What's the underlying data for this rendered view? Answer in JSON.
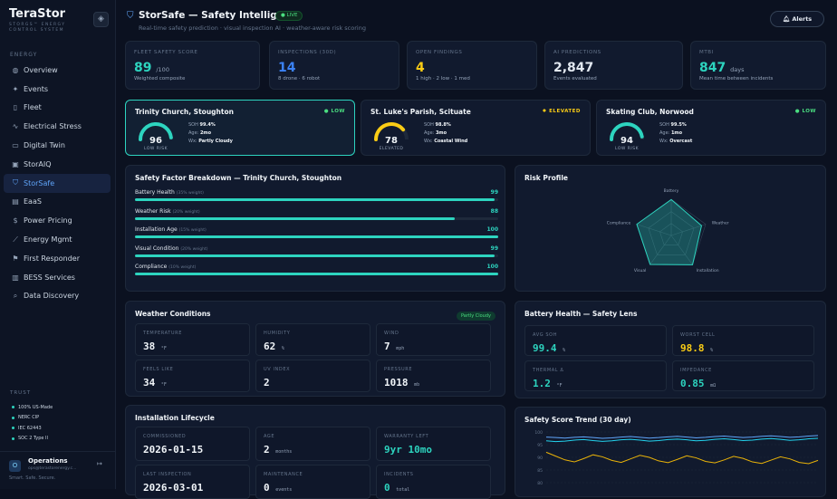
{
  "brand": {
    "name": "TeraStor",
    "subtitle": "STORGS™ ENERGY CONTROL SYSTEM",
    "collapse_icon": "diamond-icon"
  },
  "nav": {
    "section": "ENERGY",
    "items": [
      {
        "label": "Overview",
        "icon": "globe-icon",
        "glyph": "◍"
      },
      {
        "label": "Events",
        "icon": "sparkle-icon",
        "glyph": "✦"
      },
      {
        "label": "Fleet",
        "icon": "file-icon",
        "glyph": "▯"
      },
      {
        "label": "Electrical Stress",
        "icon": "wave-icon",
        "glyph": "∿"
      },
      {
        "label": "Digital Twin",
        "icon": "monitor-icon",
        "glyph": "▭"
      },
      {
        "label": "StorAIQ",
        "icon": "chip-icon",
        "glyph": "▣"
      },
      {
        "label": "StorSafe",
        "icon": "shield-icon",
        "glyph": "⛉",
        "active": true
      },
      {
        "label": "EaaS",
        "icon": "document-icon",
        "glyph": "▤"
      },
      {
        "label": "Power Pricing",
        "icon": "dollar-icon",
        "glyph": "$"
      },
      {
        "label": "Energy Mgmt",
        "icon": "trend-icon",
        "glyph": "⟋"
      },
      {
        "label": "First Responder",
        "icon": "flag-icon",
        "glyph": "⚑"
      },
      {
        "label": "BESS Services",
        "icon": "battery-icon",
        "glyph": "▥"
      },
      {
        "label": "Data Discovery",
        "icon": "search-icon",
        "glyph": "⌕"
      }
    ]
  },
  "trust": {
    "heading": "TRUST",
    "items": [
      "100% US-Made",
      "NERC CIP",
      "IEC 62443",
      "SOC 2 Type II"
    ]
  },
  "user": {
    "initial": "O",
    "name": "Operations",
    "email": "ops@terastorenergy.c...",
    "tagline": "Smart. Safe. Secure."
  },
  "header": {
    "title": "StorSafe — Safety Intelligence",
    "live": "● LIVE",
    "subtitle": "Real-time safety prediction · visual inspection AI · weather-aware risk scoring",
    "alerts": "Alerts"
  },
  "kpis": [
    {
      "label": "FLEET SAFETY SCORE",
      "value": "89",
      "unit": "/100",
      "sub": "Weighted composite",
      "color": "#2dd4bf"
    },
    {
      "label": "INSPECTIONS (30D)",
      "value": "14",
      "unit": "",
      "sub": "8 drone · 6 robot",
      "color": "#3b82f6"
    },
    {
      "label": "OPEN FINDINGS",
      "value": "4",
      "unit": "",
      "sub": "1 high · 2 low · 1 med",
      "color": "#facc15"
    },
    {
      "label": "AI PREDICTIONS",
      "value": "2,847",
      "unit": "",
      "sub": "Events evaluated",
      "color": "#e2e8f0"
    },
    {
      "label": "MTBI",
      "value": "847",
      "unit": "days",
      "sub": "Mean time between incidents",
      "color": "#2dd4bf"
    }
  ],
  "sites": [
    {
      "name": "Trinity Church, Stoughton",
      "badge": "● LOW",
      "badge_color": "#4ade80",
      "score": "96",
      "score_frac": 0.96,
      "gauge_color": "#2dd4bf",
      "level": "LOW RISK",
      "soh_label": "SOH",
      "soh": "99.4%",
      "age_label": "Age:",
      "age": "2mo",
      "wx_label": "Wx:",
      "wx": "Partly Cloudy"
    },
    {
      "name": "St. Luke's Parish, Scituate",
      "badge": "✹ ELEVATED",
      "badge_color": "#facc15",
      "score": "78",
      "score_frac": 0.78,
      "gauge_color": "#facc15",
      "level": "ELEVATED",
      "soh_label": "SOH",
      "soh": "98.8%",
      "age_label": "Age:",
      "age": "3mo",
      "wx_label": "Wx:",
      "wx": "Coastal Wind"
    },
    {
      "name": "Skating Club, Norwood",
      "badge": "● LOW",
      "badge_color": "#4ade80",
      "score": "94",
      "score_frac": 0.94,
      "gauge_color": "#2dd4bf",
      "level": "LOW RISK",
      "soh_label": "SOH",
      "soh": "99.5%",
      "age_label": "Age:",
      "age": "1mo",
      "wx_label": "Wx:",
      "wx": "Overcast"
    }
  ],
  "breakdown": {
    "title": "Safety Factor Breakdown — Trinity Church, Stoughton",
    "factors": [
      {
        "label": "Battery Health",
        "weight": "(35% weight)",
        "value": "99",
        "pct": 0.99
      },
      {
        "label": "Weather Risk",
        "weight": "(20% weight)",
        "value": "88",
        "pct": 0.88
      },
      {
        "label": "Installation Age",
        "weight": "(15% weight)",
        "value": "100",
        "pct": 1.0
      },
      {
        "label": "Visual Condition",
        "weight": "(20% weight)",
        "value": "99",
        "pct": 0.99
      },
      {
        "label": "Compliance",
        "weight": "(10% weight)",
        "value": "100",
        "pct": 1.0
      }
    ]
  },
  "risk_profile": {
    "title": "Risk Profile",
    "axes": [
      "Battery",
      "Weather",
      "Installation",
      "Visual",
      "Compliance"
    ],
    "values": [
      99,
      88,
      100,
      99,
      100
    ]
  },
  "weather": {
    "title": "Weather Conditions",
    "chip": "Partly Cloudy",
    "tiles": [
      {
        "label": "TEMPERATURE",
        "value": "38",
        "unit": "°F"
      },
      {
        "label": "HUMIDITY",
        "value": "62",
        "unit": "%"
      },
      {
        "label": "WIND",
        "value": "7",
        "unit": "mph"
      },
      {
        "label": "FEELS LIKE",
        "value": "34",
        "unit": "°F"
      },
      {
        "label": "UV INDEX",
        "value": "2",
        "unit": ""
      },
      {
        "label": "PRESSURE",
        "value": "1018",
        "unit": "mb"
      }
    ]
  },
  "battery": {
    "title": "Battery Health — Safety Lens",
    "tiles": [
      {
        "label": "AVG SOH",
        "value": "99.4",
        "unit": "%",
        "color": "#2dd4bf"
      },
      {
        "label": "WORST CELL",
        "value": "98.8",
        "unit": "%",
        "color": "#facc15"
      },
      {
        "label": "THERMAL Δ",
        "value": "1.2",
        "unit": "°F",
        "color": "#2dd4bf"
      },
      {
        "label": "IMPEDANCE",
        "value": "0.85",
        "unit": "mΩ",
        "color": "#2dd4bf"
      }
    ]
  },
  "lifecycle": {
    "title": "Installation Lifecycle",
    "tiles": [
      {
        "label": "COMMISSIONED",
        "value": "2026-01-15",
        "unit": "",
        "color": "#f1f5f9"
      },
      {
        "label": "AGE",
        "value": "2",
        "unit": "months",
        "color": "#f1f5f9"
      },
      {
        "label": "WARRANTY LEFT",
        "value": "9yr 10mo",
        "unit": "",
        "color": "#2dd4bf"
      },
      {
        "label": "LAST INSPECTION",
        "value": "2026-03-01",
        "unit": "",
        "color": "#f1f5f9"
      },
      {
        "label": "MAINTENANCE",
        "value": "0",
        "unit": "events",
        "color": "#f1f5f9"
      },
      {
        "label": "INCIDENTS",
        "value": "0",
        "unit": "total",
        "color": "#2dd4bf"
      }
    ]
  },
  "chart_data": {
    "type": "line",
    "title": "Safety Score Trend (30 day)",
    "ylim": [
      75,
      100
    ],
    "yticks": [
      "100",
      "95",
      "90",
      "85",
      "80"
    ],
    "series": [
      {
        "color": "#60a5fa",
        "values": [
          98,
          97.8,
          97.6,
          97.9,
          98.1,
          97.8,
          97.5,
          97.7,
          98,
          98.2,
          97.9,
          97.6,
          97.8,
          98.1,
          98.3,
          98,
          97.7,
          97.9,
          98.2,
          98.4,
          98.1,
          97.8,
          98,
          98.3,
          98.5,
          98.2,
          97.9,
          98.1,
          98.4,
          98.6
        ]
      },
      {
        "color": "#22d3ee",
        "values": [
          96.5,
          96.2,
          96.4,
          96.8,
          97,
          96.6,
          96.3,
          96.5,
          96.9,
          97.1,
          96.8,
          96.4,
          96.6,
          97,
          97.2,
          96.9,
          96.5,
          96.7,
          97.1,
          97.3,
          97,
          96.6,
          96.8,
          97.2,
          97.4,
          97.1,
          96.7,
          96.9,
          97.3,
          97.5
        ]
      },
      {
        "color": "#eab308",
        "values": [
          92,
          90.5,
          89,
          88.2,
          89.5,
          91,
          90.2,
          88.8,
          88,
          89.4,
          90.8,
          90,
          88.6,
          87.9,
          89.2,
          90.6,
          89.8,
          88.4,
          87.8,
          89,
          90.4,
          89.6,
          88.2,
          87.6,
          88.9,
          90.2,
          89.4,
          88,
          87.5,
          88.8
        ]
      }
    ]
  }
}
